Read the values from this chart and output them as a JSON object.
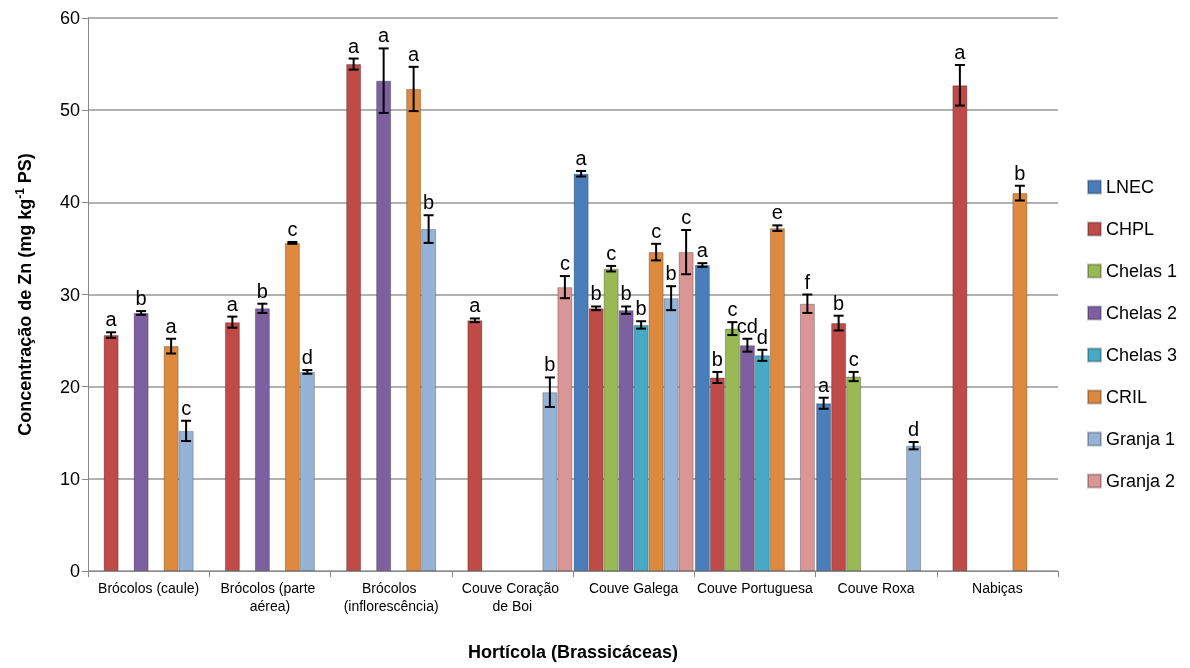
{
  "chart_data": {
    "type": "bar",
    "xlabel": "Hortícola (Brassicáceas)",
    "ylabel": "Concentração de Zn (mg kg$^{-1}$ PS)",
    "categories": [
      "Brócolos (caule)",
      "Brócolos (parte aérea)",
      "Brócolos (inflorescência)",
      "Couve Coração de Boi",
      "Couve Galega",
      "Couve Portuguesa",
      "Couve Roxa",
      "Nabiças"
    ],
    "ylim": [
      0,
      60
    ],
    "yticks": [
      0,
      10,
      20,
      30,
      40,
      50,
      60
    ],
    "grid": "y",
    "legend": "right",
    "series": [
      {
        "name": "LNEC",
        "color": "#4a7ebb",
        "values": [
          null,
          null,
          null,
          null,
          43.1,
          33.2,
          18.2,
          null
        ],
        "errors": [
          null,
          null,
          null,
          null,
          0.3,
          0.2,
          0.6,
          null
        ],
        "value_labels": [
          null,
          null,
          null,
          null,
          "a",
          "a",
          "a",
          null
        ]
      },
      {
        "name": "CHPL",
        "color": "#be4b48",
        "values": [
          25.6,
          27.0,
          55.0,
          27.2,
          28.5,
          21.0,
          26.9,
          52.7
        ],
        "errors": [
          0.3,
          0.6,
          0.6,
          0.2,
          0.2,
          0.6,
          0.8,
          2.2
        ],
        "value_labels": [
          "a",
          "a",
          "a",
          "a",
          "b",
          "b",
          "b",
          "a"
        ]
      },
      {
        "name": "Chelas 1",
        "color": "#98b954",
        "values": [
          null,
          null,
          null,
          null,
          32.8,
          26.3,
          21.1,
          null
        ],
        "errors": [
          null,
          null,
          null,
          null,
          0.3,
          0.7,
          0.5,
          null
        ],
        "value_labels": [
          null,
          null,
          null,
          null,
          "c",
          "c",
          "c",
          null
        ]
      },
      {
        "name": "Chelas 2",
        "color": "#7d60a0",
        "values": [
          28.0,
          28.5,
          53.2,
          null,
          28.3,
          24.5,
          null,
          null
        ],
        "errors": [
          0.2,
          0.5,
          3.5,
          null,
          0.4,
          0.7,
          null,
          null
        ],
        "value_labels": [
          "b",
          "b",
          "a",
          null,
          "b",
          "cd",
          null,
          null
        ]
      },
      {
        "name": "Chelas 3",
        "color": "#46aac5",
        "values": [
          null,
          null,
          null,
          null,
          26.7,
          23.4,
          null,
          null
        ],
        "errors": [
          null,
          null,
          null,
          null,
          0.4,
          0.6,
          null,
          null
        ],
        "value_labels": [
          null,
          null,
          null,
          null,
          "b",
          "d",
          null,
          null
        ]
      },
      {
        "name": "CRIL",
        "color": "#dd8a3e",
        "values": [
          24.4,
          35.6,
          52.3,
          null,
          34.6,
          37.2,
          null,
          41.0
        ],
        "errors": [
          0.8,
          0.1,
          2.4,
          null,
          0.9,
          0.3,
          null,
          0.8
        ],
        "value_labels": [
          "a",
          "c",
          "a",
          null,
          "c",
          "e",
          null,
          "b"
        ]
      },
      {
        "name": "Granja 1",
        "color": "#95b3d7",
        "values": [
          15.2,
          21.6,
          37.1,
          19.4,
          29.6,
          null,
          13.6,
          null
        ],
        "errors": [
          1.1,
          0.2,
          1.5,
          1.6,
          1.3,
          null,
          0.4,
          null
        ],
        "value_labels": [
          "c",
          "d",
          "b",
          "b",
          "b",
          null,
          "d",
          null
        ]
      },
      {
        "name": "Granja 2",
        "color": "#d99694",
        "values": [
          null,
          null,
          null,
          30.8,
          34.6,
          29.0,
          null,
          null
        ],
        "errors": [
          null,
          null,
          null,
          1.2,
          2.4,
          1.0,
          null,
          null
        ],
        "value_labels": [
          null,
          null,
          null,
          "c",
          "c",
          "f",
          null,
          null
        ]
      }
    ]
  }
}
